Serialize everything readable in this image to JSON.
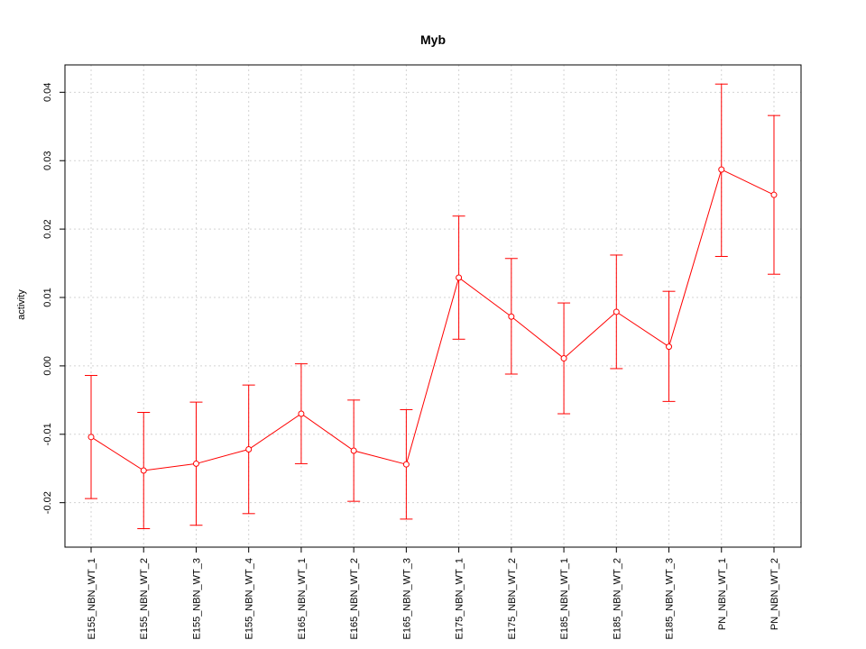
{
  "chart_data": {
    "type": "line",
    "title": "Myb",
    "xlabel": "",
    "ylabel": "activity",
    "categories": [
      "E155_NBN_WT_1",
      "E155_NBN_WT_2",
      "E155_NBN_WT_3",
      "E155_NBN_WT_4",
      "E165_NBN_WT_1",
      "E165_NBN_WT_2",
      "E165_NBN_WT_3",
      "E175_NBN_WT_1",
      "E175_NBN_WT_2",
      "E185_NBN_WT_1",
      "E185_NBN_WT_2",
      "E185_NBN_WT_3",
      "PN_NBN_WT_1",
      "PN_NBN_WT_2"
    ],
    "series": [
      {
        "values": [
          -0.0104,
          -0.0153,
          -0.0143,
          -0.0122,
          -0.007,
          -0.0124,
          -0.0144,
          0.0129,
          0.0072,
          0.0011,
          0.0079,
          0.0028,
          0.0287,
          0.025
        ],
        "upper": [
          -0.0014,
          -0.0068,
          -0.0053,
          -0.0028,
          0.0003,
          -0.005,
          -0.0064,
          0.0219,
          0.0157,
          0.0092,
          0.0162,
          0.0109,
          0.0412,
          0.0366
        ],
        "lower": [
          -0.0194,
          -0.0238,
          -0.0233,
          -0.0216,
          -0.0143,
          -0.0198,
          -0.0224,
          0.0039,
          -0.0012,
          -0.007,
          -0.0004,
          -0.0052,
          0.016,
          0.0134
        ]
      }
    ],
    "yticks": [
      -0.02,
      -0.01,
      0.0,
      0.01,
      0.02,
      0.03,
      0.04
    ],
    "ytick_labels": [
      "-0.02",
      "-0.01",
      "0.00",
      "0.01",
      "0.02",
      "0.03",
      "0.04"
    ],
    "ylim": [
      -0.0265,
      0.044
    ],
    "grid": true,
    "colors": {
      "series": "#ff0000",
      "grid": "#d3d3d3",
      "axis": "#000000"
    }
  }
}
